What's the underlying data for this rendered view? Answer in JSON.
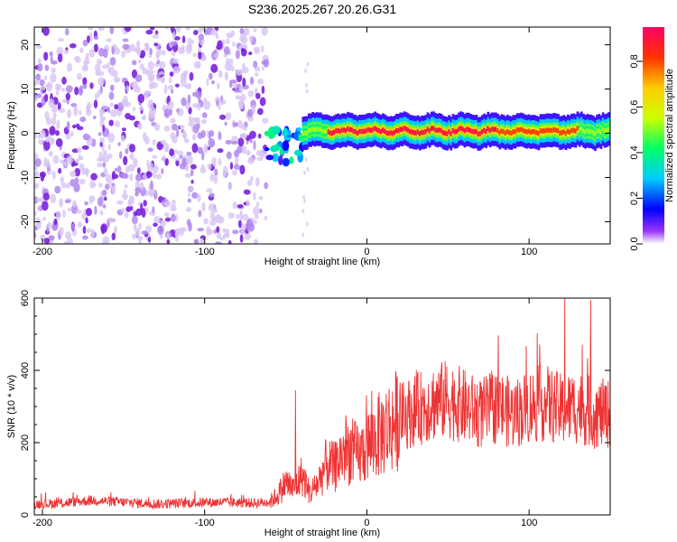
{
  "title": "S236.2025.267.20.26.G31",
  "chart_data": [
    {
      "type": "heatmap",
      "name": "spectrogram",
      "xlabel": "Height of straight line (km)",
      "ylabel": "Frequency (Hz)",
      "xlim": [
        -205,
        150
      ],
      "ylim": [
        -25,
        24
      ],
      "xticks": [
        -200,
        -100,
        0,
        100
      ],
      "xtick_labels": [
        "-200",
        "-100",
        "0",
        "100"
      ],
      "yticks": [
        20,
        10,
        0,
        -10,
        -20
      ],
      "ytick_labels": [
        "20",
        "10",
        "0",
        "-10",
        "-20"
      ],
      "colorbar": {
        "label": "Normalized spectral amplitude",
        "range": [
          0,
          0.95
        ],
        "ticks": [
          0.0,
          0.2,
          0.4,
          0.6,
          0.8
        ],
        "tick_labels": [
          "0.0",
          "0.2",
          "0.4",
          "0.6",
          "0.8"
        ]
      },
      "features": [
        {
          "description": "broadband noise",
          "x_range": [
            -205,
            -62
          ],
          "amplitude": 0.1
        },
        {
          "description": "signal onset",
          "x_range": [
            -62,
            -40
          ],
          "frequency_hz": -3,
          "amplitude": 0.35
        },
        {
          "description": "frequency trace",
          "x_range": [
            -40,
            150
          ],
          "frequency_hz": 0.5,
          "peak_amplitude": 0.95
        }
      ]
    },
    {
      "type": "line",
      "name": "snr",
      "xlabel": "Height of straight line (km)",
      "ylabel": "SNR (10 * v/v)",
      "xlim": [
        -205,
        150
      ],
      "ylim": [
        0,
        600
      ],
      "xticks": [
        -200,
        -100,
        0,
        100
      ],
      "xtick_labels": [
        "-200",
        "-100",
        "0",
        "100"
      ],
      "yticks": [
        0,
        200,
        400,
        600
      ],
      "ytick_labels": [
        "0",
        "200",
        "400",
        "600"
      ],
      "color": "#ee3333",
      "series": [
        {
          "name": "SNR",
          "x": [
            -205,
            -190,
            -170,
            -150,
            -130,
            -110,
            -90,
            -70,
            -60,
            -55,
            -50,
            -45,
            -40,
            -35,
            -30,
            -25,
            -20,
            -15,
            -10,
            -5,
            0,
            10,
            20,
            30,
            40,
            50,
            60,
            70,
            80,
            90,
            100,
            110,
            120,
            130,
            140,
            150
          ],
          "y": [
            30,
            32,
            40,
            35,
            30,
            33,
            35,
            33,
            35,
            55,
            90,
            70,
            110,
            60,
            90,
            140,
            130,
            170,
            180,
            160,
            190,
            230,
            270,
            290,
            310,
            320,
            300,
            280,
            300,
            280,
            300,
            310,
            290,
            300,
            280,
            280
          ]
        }
      ],
      "peaks": [
        {
          "x": -44,
          "y": 345
        },
        {
          "x": 122,
          "y": 600
        },
        {
          "x": 138,
          "y": 595
        }
      ]
    }
  ]
}
